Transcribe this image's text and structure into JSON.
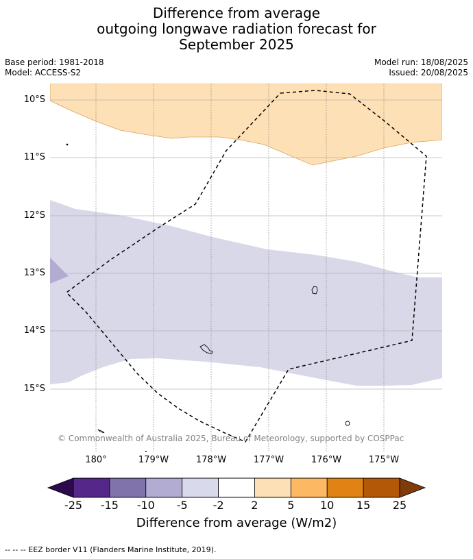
{
  "title": {
    "line1": "Difference from average",
    "line2": "outgoing longwave radiation forecast for",
    "line3": "September 2025"
  },
  "meta": {
    "base_period": "Base period: 1981-2018",
    "model": "Model: ACCESS-S2",
    "model_run": "Model run: 18/08/2025",
    "issued": "Issued: 20/08/2025"
  },
  "map": {
    "latitude_labels": [
      "10°S",
      "11°S",
      "12°S",
      "13°S",
      "14°S",
      "15°S"
    ],
    "longitude_labels": [
      "180°",
      "179°W",
      "178°W",
      "177°W",
      "176°W",
      "175°W"
    ],
    "copyright": "© Commonwealth of Australia 2025, Bureau of Meteorology, supported by COSPPac",
    "zones": [
      {
        "name": "positive 2 to 5",
        "color": "#fde0b5"
      },
      {
        "name": "negative -5 to -2",
        "color": "#d8d8e9"
      },
      {
        "name": "negative -10 to -5",
        "color": "#b2abd2"
      }
    ],
    "eez_border_style": "black dashed line",
    "gridlines": true
  },
  "colorbar": {
    "title": "Difference from average (W/m2)",
    "labels": [
      "-25",
      "-15",
      "-10",
      "-5",
      "-2",
      "2",
      "5",
      "10",
      "15",
      "25"
    ],
    "under_color": "#2d0a4e",
    "over_color": "#7f3b08",
    "colors": [
      "#542788",
      "#8073ac",
      "#b2abd2",
      "#d8daeb",
      "#ffffff",
      "#fee0b6",
      "#fdb863",
      "#e08214",
      "#b35806"
    ]
  },
  "footnote": "--  --  -- EEZ border V11 (Flanders Marine Institute, 2019)."
}
